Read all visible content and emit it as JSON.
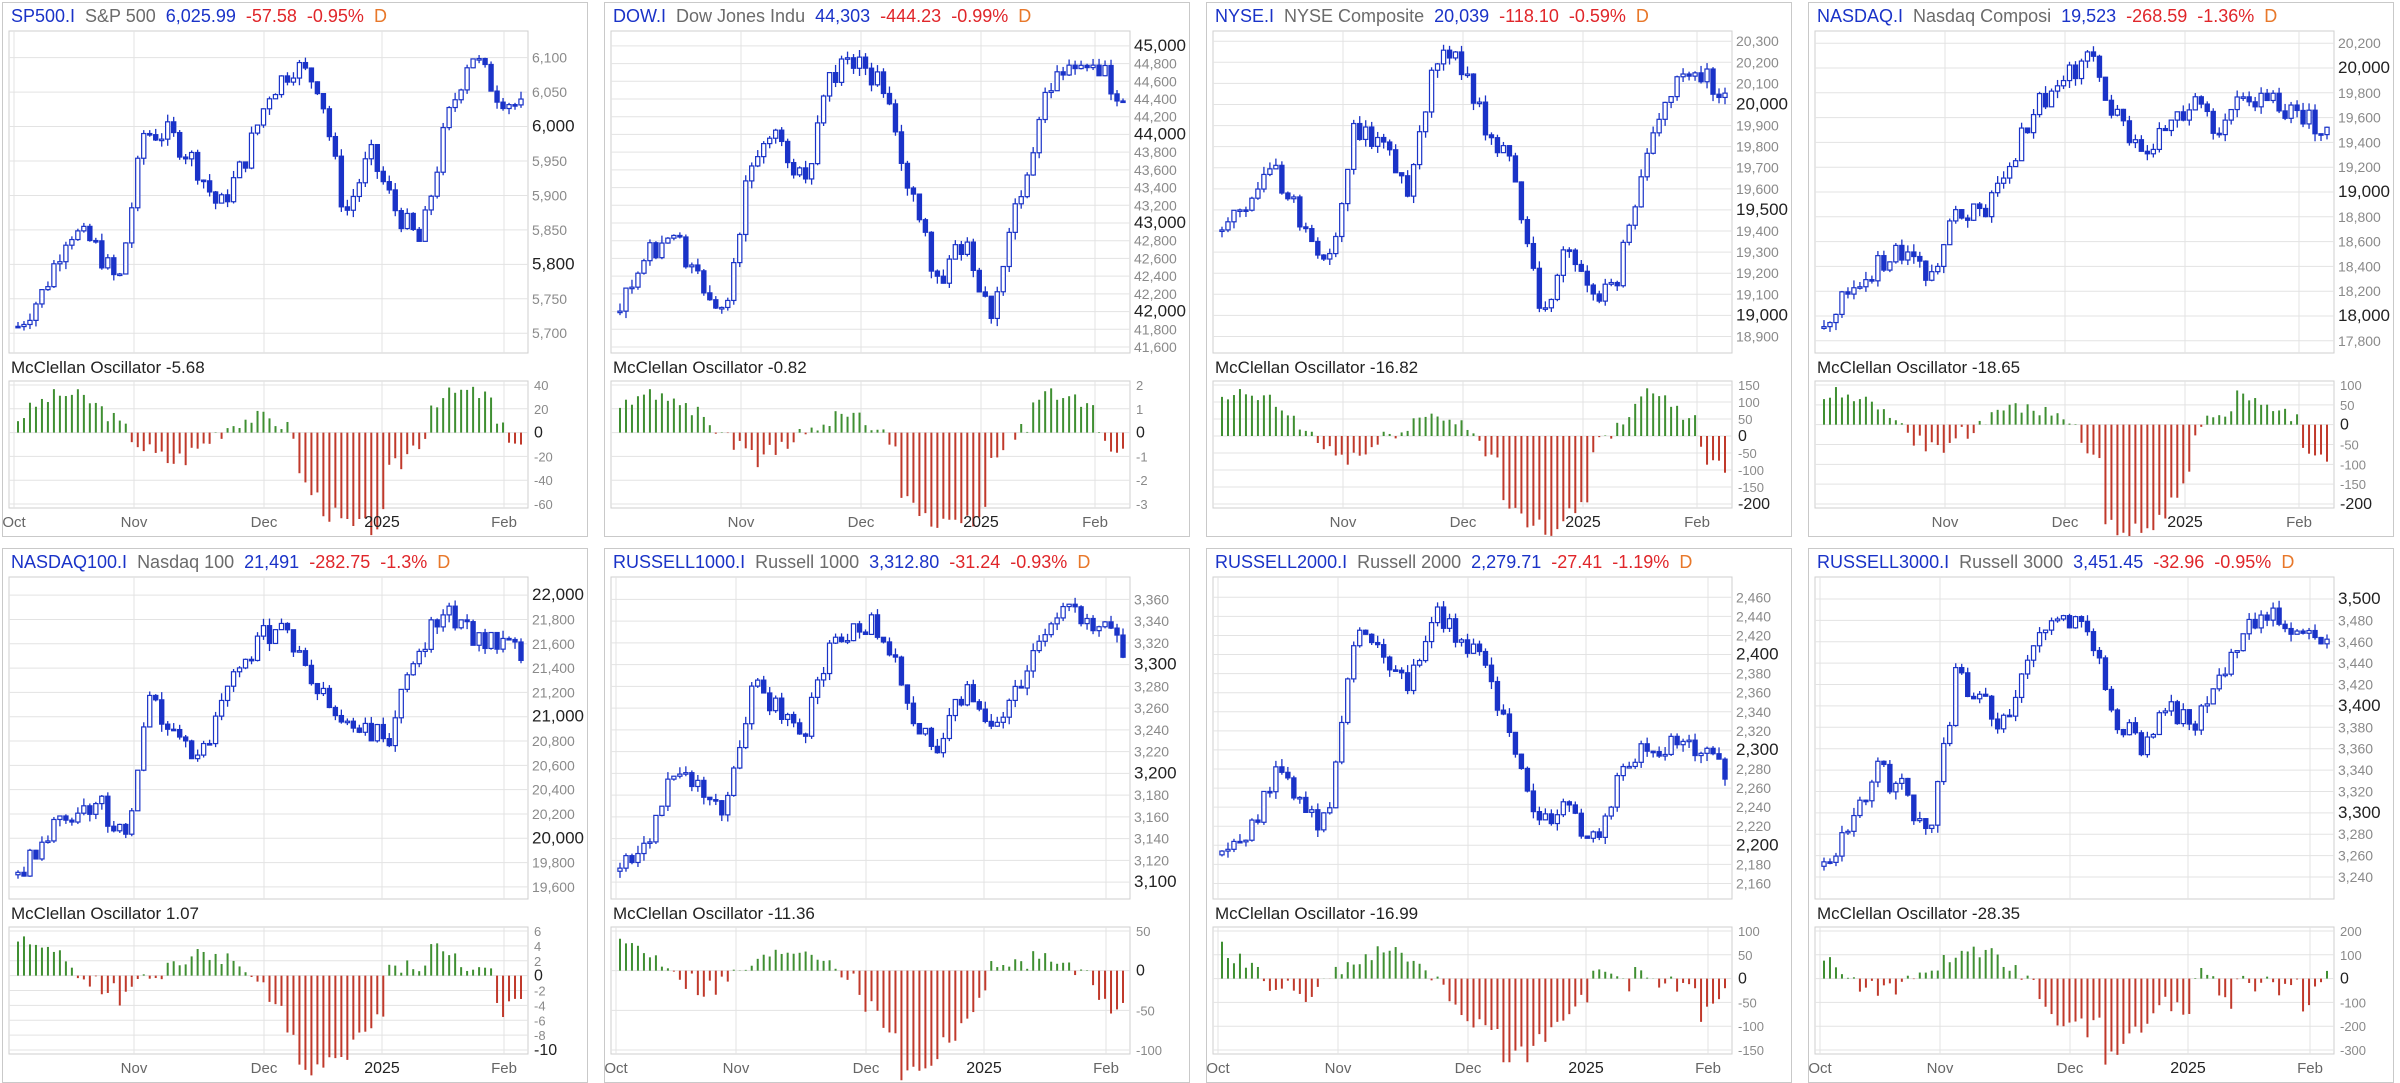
{
  "colors": {
    "up_candle": "#1a33c8",
    "down_candle": "#1a33c8",
    "osc_positive": "#3f8f32",
    "osc_negative": "#c0392b",
    "symbol": "#1a33c8",
    "change_negative": "#e0262a",
    "period": "#e8782a",
    "grid": "#e3e3e3"
  },
  "x_axis_labels": [
    "Oct",
    "Nov",
    "Dec",
    "2025",
    "Feb"
  ],
  "panels": [
    {
      "symbol": "SP500.I",
      "name": "S&P 500",
      "last": "6,025.99",
      "change": "-57.58",
      "change_pct": "-0.95%",
      "period": "D",
      "osc_label": "McClellan Oscillator -5.68",
      "price_ticks": [
        "6,100",
        "6,050",
        "6,000",
        "5,950",
        "5,900",
        "5,850",
        "5,800",
        "5,750",
        "5,700"
      ],
      "price_bold": [
        "6,000",
        "5,800"
      ],
      "osc_ticks": [
        "40",
        "20",
        "0",
        "-20",
        "-40",
        "-60"
      ],
      "osc_bold": [
        "0"
      ],
      "xlabels": [
        "Oct",
        "Nov",
        "Dec",
        "2025",
        "Feb"
      ]
    },
    {
      "symbol": "DOW.I",
      "name": "Dow Jones Indu",
      "last": "44,303",
      "change": "-444.23",
      "change_pct": "-0.99%",
      "period": "D",
      "osc_label": "McClellan Oscillator -0.82",
      "price_ticks": [
        "45,000",
        "44,800",
        "44,600",
        "44,400",
        "44,200",
        "44,000",
        "43,800",
        "43,600",
        "43,400",
        "43,200",
        "43,000",
        "42,800",
        "42,600",
        "42,400",
        "42,200",
        "42,000",
        "41,800",
        "41,600"
      ],
      "price_bold": [
        "45,000",
        "44,000",
        "43,000",
        "42,000"
      ],
      "osc_ticks": [
        "2",
        "1",
        "0",
        "-1",
        "-2",
        "-3"
      ],
      "osc_bold": [
        "0"
      ],
      "xlabels": [
        "Nov",
        "Dec",
        "2025",
        "Feb"
      ]
    },
    {
      "symbol": "NYSE.I",
      "name": "NYSE Composite",
      "last": "20,039",
      "change": "-118.10",
      "change_pct": "-0.59%",
      "period": "D",
      "osc_label": "McClellan Oscillator -16.82",
      "price_ticks": [
        "20,300",
        "20,200",
        "20,100",
        "20,000",
        "19,900",
        "19,800",
        "19,700",
        "19,600",
        "19,500",
        "19,400",
        "19,300",
        "19,200",
        "19,100",
        "19,000",
        "18,900"
      ],
      "price_bold": [
        "20,000",
        "19,500",
        "19,000"
      ],
      "osc_ticks": [
        "150",
        "100",
        "50",
        "0",
        "-50",
        "-100",
        "-150",
        "-200"
      ],
      "osc_bold": [
        "-200"
      ],
      "xlabels": [
        "Nov",
        "Dec",
        "2025",
        "Feb"
      ]
    },
    {
      "symbol": "NASDAQ.I",
      "name": "Nasdaq Composi",
      "last": "19,523",
      "change": "-268.59",
      "change_pct": "-1.36%",
      "period": "D",
      "osc_label": "McClellan Oscillator -18.65",
      "price_ticks": [
        "20,200",
        "20,000",
        "19,800",
        "19,600",
        "19,400",
        "19,200",
        "19,000",
        "18,800",
        "18,600",
        "18,400",
        "18,200",
        "18,000",
        "17,800"
      ],
      "price_bold": [
        "20,000",
        "19,000",
        "18,000"
      ],
      "osc_ticks": [
        "100",
        "50",
        "0",
        "-50",
        "-100",
        "-150",
        "-200"
      ],
      "osc_bold": [
        "-200"
      ],
      "xlabels": [
        "Nov",
        "Dec",
        "2025",
        "Feb"
      ]
    },
    {
      "symbol": "NASDAQ100.I",
      "name": "Nasdaq 100",
      "last": "21,491",
      "change": "-282.75",
      "change_pct": "-1.3%",
      "period": "D",
      "osc_label": "McClellan Oscillator 1.07",
      "price_ticks": [
        "22,000",
        "21,800",
        "21,600",
        "21,400",
        "21,200",
        "21,000",
        "20,800",
        "20,600",
        "20,400",
        "20,200",
        "20,000",
        "19,800",
        "19,600"
      ],
      "price_bold": [
        "22,000",
        "21,000",
        "20,000"
      ],
      "osc_ticks": [
        "6",
        "4",
        "2",
        "0",
        "-2",
        "-4",
        "-6",
        "-8",
        "-10"
      ],
      "osc_bold": [
        "0",
        "-10"
      ],
      "xlabels": [
        "Nov",
        "Dec",
        "2025",
        "Feb"
      ]
    },
    {
      "symbol": "RUSSELL1000.I",
      "name": "Russell 1000",
      "last": "3,312.80",
      "change": "-31.24",
      "change_pct": "-0.93%",
      "period": "D",
      "osc_label": "McClellan Oscillator -11.36",
      "price_ticks": [
        "3,360",
        "3,340",
        "3,320",
        "3,300",
        "3,280",
        "3,260",
        "3,240",
        "3,220",
        "3,200",
        "3,180",
        "3,160",
        "3,140",
        "3,120",
        "3,100"
      ],
      "price_bold": [
        "3,300",
        "3,200",
        "3,100"
      ],
      "osc_ticks": [
        "50",
        "0",
        "-50",
        "-100"
      ],
      "osc_bold": [],
      "xlabels": [
        "Oct",
        "Nov",
        "Dec",
        "2025",
        "Feb"
      ]
    },
    {
      "symbol": "RUSSELL2000.I",
      "name": "Russell 2000",
      "last": "2,279.71",
      "change": "-27.41",
      "change_pct": "-1.19%",
      "period": "D",
      "osc_label": "McClellan Oscillator -16.99",
      "price_ticks": [
        "2,460",
        "2,440",
        "2,420",
        "2,400",
        "2,380",
        "2,360",
        "2,340",
        "2,320",
        "2,300",
        "2,280",
        "2,260",
        "2,240",
        "2,220",
        "2,200",
        "2,180",
        "2,160"
      ],
      "price_bold": [
        "2,400",
        "2,300",
        "2,200"
      ],
      "osc_ticks": [
        "100",
        "50",
        "0",
        "-50",
        "-100",
        "-150"
      ],
      "osc_bold": [],
      "xlabels": [
        "Oct",
        "Nov",
        "Dec",
        "2025",
        "Feb"
      ]
    },
    {
      "symbol": "RUSSELL3000.I",
      "name": "Russell 3000",
      "last": "3,451.45",
      "change": "-32.96",
      "change_pct": "-0.95%",
      "period": "D",
      "osc_label": "McClellan Oscillator -28.35",
      "price_ticks": [
        "3,500",
        "3,480",
        "3,460",
        "3,440",
        "3,420",
        "3,400",
        "3,380",
        "3,360",
        "3,340",
        "3,320",
        "3,300",
        "3,280",
        "3,260",
        "3,240"
      ],
      "price_bold": [
        "3,500",
        "3,400",
        "3,300"
      ],
      "osc_ticks": [
        "200",
        "100",
        "0",
        "-100",
        "-200",
        "-300"
      ],
      "osc_bold": [],
      "xlabels": [
        "Oct",
        "Nov",
        "Dec",
        "2025",
        "Feb"
      ]
    }
  ],
  "chart_data": [
    {
      "type": "candlestick",
      "title": "SP500.I S&P 500",
      "ylim": [
        5680,
        6130
      ],
      "closes_approx": [
        5710,
        5760,
        5850,
        5830,
        5770,
        5990,
        5990,
        5950,
        5880,
        5950,
        6050,
        6090,
        6060,
        5870,
        5960,
        5880,
        5830,
        6000,
        6110,
        6050,
        6025.99
      ]
    },
    {
      "type": "candlestick",
      "title": "DOW.I Dow Jones Indu",
      "ylim": [
        41600,
        45100
      ],
      "closes_approx": [
        42000,
        42600,
        42900,
        42300,
        42100,
        43800,
        44000,
        43400,
        44700,
        44800,
        44500,
        43300,
        42300,
        42800,
        42000,
        43200,
        44300,
        44900,
        44800,
        44303
      ]
    },
    {
      "type": "candlestick",
      "title": "NYSE.I NYSE Composite",
      "ylim": [
        18850,
        20320
      ],
      "closes_approx": [
        19400,
        19500,
        19700,
        19450,
        19200,
        19900,
        19800,
        19600,
        20200,
        20200,
        19900,
        19700,
        19000,
        19300,
        19100,
        19200,
        19800,
        20100,
        20150,
        20039
      ]
    },
    {
      "type": "candlestick",
      "title": "NASDAQ.I Nasdaq Composi",
      "ylim": [
        17750,
        20250
      ],
      "closes_approx": [
        17900,
        18200,
        18400,
        18500,
        18300,
        18900,
        18800,
        19200,
        19700,
        19900,
        20100,
        19600,
        19300,
        19500,
        19700,
        19500,
        19800,
        19700,
        19600,
        19523
      ]
    },
    {
      "type": "candlestick",
      "title": "NASDAQ100.I Nasdaq 100",
      "ylim": [
        19550,
        22100
      ],
      "closes_approx": [
        19700,
        20000,
        20200,
        20300,
        20000,
        21100,
        20800,
        20700,
        21400,
        21600,
        21800,
        21300,
        21000,
        20900,
        20800,
        21500,
        21900,
        21700,
        21600,
        21491
      ]
    },
    {
      "type": "candlestick",
      "title": "RUSSELL1000.I Russell 1000",
      "ylim": [
        3090,
        3375
      ],
      "closes_approx": [
        3110,
        3140,
        3200,
        3190,
        3160,
        3280,
        3260,
        3240,
        3320,
        3340,
        3330,
        3260,
        3220,
        3280,
        3240,
        3280,
        3330,
        3350,
        3340,
        3312.8
      ]
    },
    {
      "type": "candlestick",
      "title": "RUSSELL2000.I Russell 2000",
      "ylim": [
        2150,
        2475
      ],
      "closes_approx": [
        2190,
        2210,
        2280,
        2240,
        2220,
        2420,
        2400,
        2360,
        2440,
        2420,
        2380,
        2300,
        2230,
        2240,
        2200,
        2270,
        2300,
        2310,
        2300,
        2279.71
      ]
    },
    {
      "type": "candlestick",
      "title": "RUSSELL3000.I Russell 3000",
      "ylim": [
        3225,
        3515
      ],
      "closes_approx": [
        3250,
        3290,
        3340,
        3320,
        3280,
        3430,
        3400,
        3380,
        3470,
        3480,
        3470,
        3390,
        3360,
        3400,
        3380,
        3420,
        3480,
        3490,
        3470,
        3451.45
      ]
    }
  ]
}
